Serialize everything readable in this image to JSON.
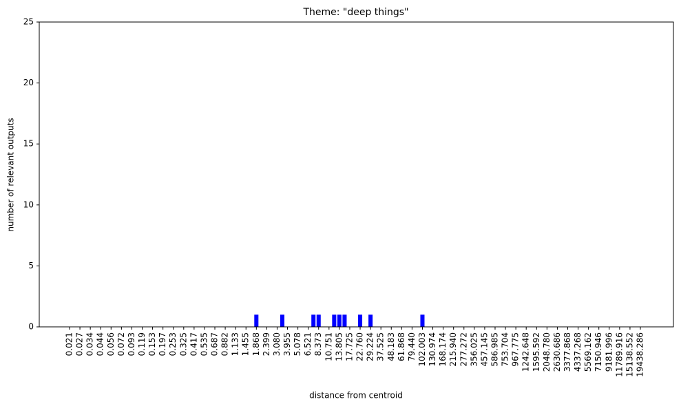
{
  "chart_data": {
    "type": "bar",
    "title": "Theme: \"deep things\"",
    "x_label": "distance from centroid",
    "y_label": "number of relevant outputs",
    "color": "#0000ff",
    "grid": false,
    "categories": [
      "0.021",
      null,
      "0.027",
      null,
      "0.034",
      null,
      "0.044",
      null,
      "0.056",
      null,
      "0.072",
      null,
      "0.093",
      null,
      "0.119",
      null,
      "0.153",
      null,
      "0.197",
      null,
      "0.253",
      null,
      "0.325",
      null,
      "0.417",
      null,
      "0.535",
      null,
      "0.687",
      null,
      "0.882",
      null,
      "1.133",
      null,
      "1.455",
      null,
      "1.868",
      null,
      "2.399",
      null,
      "3.080",
      null,
      "3.955",
      null,
      "5.078",
      null,
      "6.521",
      null,
      "8.373",
      null,
      "10.751",
      null,
      "13.805",
      null,
      "17.725",
      null,
      "22.760",
      null,
      "29.224",
      null,
      "37.525",
      null,
      "48.183",
      null,
      "61.868",
      null,
      "79.440",
      null,
      "102.003",
      null,
      "130.974",
      null,
      "168.174",
      null,
      "215.940",
      null,
      "277.272",
      null,
      "356.025",
      null,
      "457.145",
      null,
      "586.985",
      null,
      "753.704",
      null,
      "967.775",
      null,
      "1242.648",
      null,
      "1595.592",
      null,
      "2048.780",
      null,
      "2630.686",
      null,
      "3377.868",
      null,
      "4337.268",
      null,
      "5569.162",
      null,
      "7150.946",
      null,
      "9181.996",
      null,
      "11789.916",
      null,
      "15138.552",
      null,
      "19438.286"
    ],
    "values": [
      0,
      0,
      0,
      0,
      0,
      0,
      0,
      0,
      0,
      0,
      0,
      0,
      0,
      0,
      0,
      0,
      0,
      0,
      0,
      0,
      0,
      0,
      0,
      0,
      0,
      0,
      0,
      0,
      0,
      0,
      0,
      0,
      0,
      0,
      0,
      0,
      1,
      0,
      0,
      0,
      0,
      1,
      0,
      0,
      0,
      0,
      0,
      1,
      1,
      0,
      0,
      1,
      1,
      1,
      0,
      0,
      1,
      0,
      1,
      0,
      0,
      0,
      0,
      0,
      0,
      0,
      0,
      0,
      1,
      0,
      0,
      0,
      0,
      0,
      0,
      0,
      0,
      0,
      0,
      0,
      0,
      0,
      0,
      0,
      0,
      0,
      0,
      0,
      0,
      0,
      0,
      0,
      0,
      0,
      0,
      0,
      0,
      0,
      0,
      0,
      0,
      0,
      0,
      0,
      0,
      0,
      0,
      0,
      0,
      0,
      0
    ],
    "ylim": [
      0,
      25
    ],
    "yticks": [
      0,
      5,
      10,
      15,
      20,
      25
    ]
  }
}
